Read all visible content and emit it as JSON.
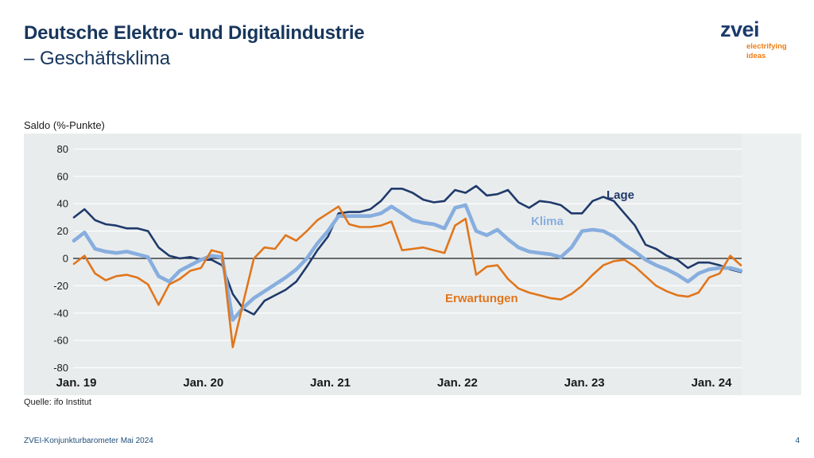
{
  "header": {
    "title_line1": "Deutsche Elektro- und Digitalindustrie",
    "title_line2": "– Geschäftsklima"
  },
  "logo": {
    "wordmark": "zvei",
    "tagline_line1": "electrifying",
    "tagline_line2": "ideas"
  },
  "chart": {
    "axis_title": "Saldo (%-Punkte)",
    "source": "Quelle: ifo Institut"
  },
  "footer": {
    "left": "ZVEI-Konjunkturbarometer Mai 2024",
    "page_number": "4"
  },
  "colors": {
    "title_navy": "#17365d",
    "logo_navy": "#1b3c6d",
    "logo_orange": "#ee7d16",
    "panel_bg": "#e9eced",
    "panel_bg_right": "#edf0f0",
    "gridline": "#fcfdfd",
    "zero_line": "#1c1c1c",
    "axis_text": "#1a1a1a",
    "footer_blue": "#1f4e79"
  },
  "chart_data": {
    "type": "line",
    "title": "Deutsche Elektro- und Digitalindustrie – Geschäftsklima",
    "ylabel": "Saldo (%-Punkte)",
    "ylim": [
      -80,
      80
    ],
    "y_ticks": [
      80,
      60,
      40,
      20,
      0,
      -20,
      -40,
      -60,
      -80
    ],
    "x_tick_labels": [
      "Jan. 19",
      "Jan. 20",
      "Jan. 21",
      "Jan. 22",
      "Jan. 23",
      "Jan. 24"
    ],
    "x_unit": "month",
    "x_range": "Jan 2019 - Apr 2024",
    "grid": "horizontal",
    "legend_position": "inline-labels",
    "source": "Quelle: ifo Institut",
    "series": [
      {
        "key": "lage",
        "name": "Lage",
        "color": "#1f3a6b",
        "stroke_width": 2.6,
        "values": [
          30,
          36,
          28,
          25,
          24,
          22,
          22,
          20,
          8,
          2,
          0,
          1,
          -1,
          -1,
          -5,
          -26,
          -37,
          -41,
          -31,
          -27,
          -23,
          -17,
          -6,
          6,
          16,
          33,
          34,
          34,
          36,
          42,
          51,
          51,
          48,
          43,
          41,
          42,
          50,
          48,
          53,
          46,
          47,
          50,
          41,
          37,
          42,
          41,
          39,
          33,
          33,
          42,
          45,
          42,
          33,
          24,
          10,
          7,
          2,
          -1,
          -7,
          -3,
          -3,
          -5,
          -8,
          -10
        ]
      },
      {
        "key": "klima",
        "name": "Klima",
        "color": "#87aede",
        "stroke_width": 4.6,
        "values": [
          13,
          19,
          7,
          5,
          4,
          5,
          3,
          1,
          -13,
          -17,
          -9,
          -5,
          -1,
          2,
          1,
          -45,
          -36,
          -29,
          -24,
          -19,
          -14,
          -8,
          0,
          11,
          20,
          31,
          31,
          31,
          31,
          33,
          38,
          33,
          28,
          26,
          25,
          22,
          37,
          39,
          20,
          17,
          21,
          14,
          8,
          5,
          4,
          3,
          1,
          8,
          20,
          21,
          20,
          16,
          10,
          5,
          -1,
          -5,
          -8,
          -12,
          -17,
          -11,
          -8,
          -7,
          -7,
          -9
        ]
      },
      {
        "key": "erwartungen",
        "name": "Erwartungen",
        "color": "#e0761c",
        "stroke_width": 2.6,
        "values": [
          -4,
          2,
          -11,
          -16,
          -13,
          -12,
          -14,
          -19,
          -34,
          -19,
          -15,
          -9,
          -7,
          6,
          4,
          -65,
          -32,
          0,
          8,
          7,
          17,
          13,
          20,
          28,
          33,
          38,
          25,
          23,
          23,
          24,
          27,
          6,
          7,
          8,
          6,
          4,
          24,
          29,
          -12,
          -6,
          -5,
          -15,
          -22,
          -25,
          -27,
          -29,
          -30,
          -26,
          -20,
          -12,
          -5,
          -2,
          -1,
          -6,
          -13,
          -20,
          -24,
          -27,
          -28,
          -25,
          -14,
          -11,
          2,
          -5
        ]
      }
    ]
  }
}
